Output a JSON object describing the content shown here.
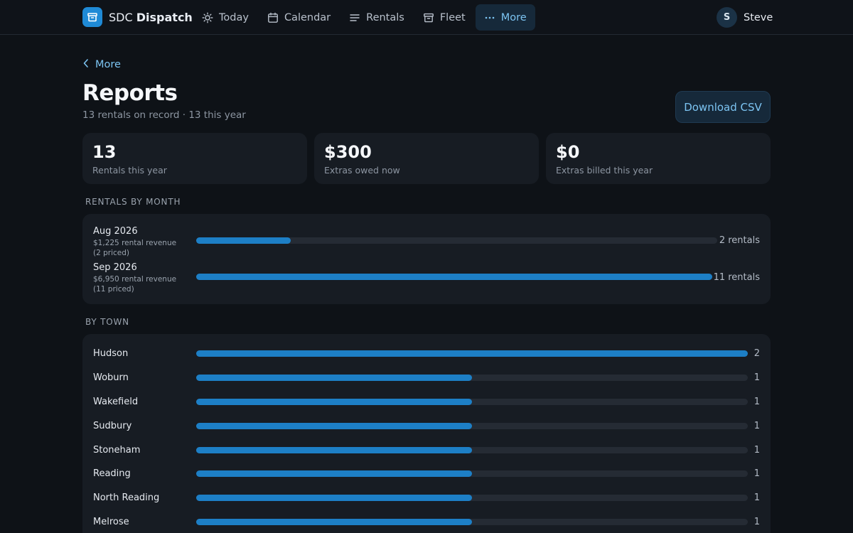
{
  "app": {
    "name_prefix": "SDC",
    "name_bold": "Dispatch",
    "accent_color": "#1d7fc6",
    "logo_icon": "archive-box-icon"
  },
  "nav": {
    "items": [
      {
        "label": "Today",
        "icon": "sun-icon",
        "active": false
      },
      {
        "label": "Calendar",
        "icon": "calendar-icon",
        "active": false
      },
      {
        "label": "Rentals",
        "icon": "list-icon",
        "active": false
      },
      {
        "label": "Fleet",
        "icon": "archive-box-icon",
        "active": false
      },
      {
        "label": "More",
        "icon": "ellipsis-icon",
        "active": true
      }
    ]
  },
  "user": {
    "initial": "S",
    "name": "Steve"
  },
  "header": {
    "back_label": "More",
    "title": "Reports",
    "subtitle": "13 rentals on record · 13 this year",
    "download_label": "Download CSV"
  },
  "stats": [
    {
      "value": "13",
      "label": "Rentals this year"
    },
    {
      "value": "$300",
      "label": "Extras owed now"
    },
    {
      "value": "$0",
      "label": "Extras billed this year"
    }
  ],
  "rentals_by_month": {
    "heading": "RENTALS BY MONTH",
    "rows": [
      {
        "month": "Aug 2026",
        "revenue": "$1,225 rental revenue (2 priced)",
        "count_label": "2 rentals",
        "fraction": 0.182
      },
      {
        "month": "Sep 2026",
        "revenue": "$6,950 rental revenue (11 priced)",
        "count_label": "11 rentals",
        "fraction": 1.0
      }
    ]
  },
  "by_town": {
    "heading": "BY TOWN",
    "rows": [
      {
        "town": "Hudson",
        "count": "2",
        "fraction": 1.0
      },
      {
        "town": "Woburn",
        "count": "1",
        "fraction": 0.5
      },
      {
        "town": "Wakefield",
        "count": "1",
        "fraction": 0.5
      },
      {
        "town": "Sudbury",
        "count": "1",
        "fraction": 0.5
      },
      {
        "town": "Stoneham",
        "count": "1",
        "fraction": 0.5
      },
      {
        "town": "Reading",
        "count": "1",
        "fraction": 0.5
      },
      {
        "town": "North Reading",
        "count": "1",
        "fraction": 0.5
      },
      {
        "town": "Melrose",
        "count": "1",
        "fraction": 0.5
      }
    ]
  }
}
